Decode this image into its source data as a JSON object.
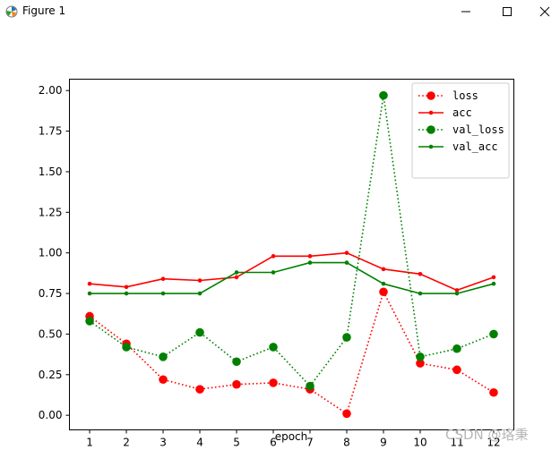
{
  "window": {
    "title": "Figure 1",
    "controls": [
      "minimize",
      "maximize",
      "close"
    ],
    "icon": "matplotlib-logo-icon"
  },
  "chart_data": {
    "type": "line",
    "xlabel": "epoch",
    "ylabel": "",
    "x": [
      1,
      2,
      3,
      4,
      5,
      6,
      7,
      8,
      9,
      10,
      11,
      12
    ],
    "xlim": [
      0.45,
      12.55
    ],
    "ylim": [
      -0.09,
      2.07
    ],
    "yticks": [
      0.0,
      0.25,
      0.5,
      0.75,
      1.0,
      1.25,
      1.5,
      1.75,
      2.0
    ],
    "ytick_labels": [
      "0.00",
      "0.25",
      "0.50",
      "0.75",
      "1.00",
      "1.25",
      "1.50",
      "1.75",
      "2.00"
    ],
    "xtick_labels": [
      "1",
      "2",
      "3",
      "4",
      "5",
      "6",
      "7",
      "8",
      "9",
      "10",
      "11",
      "12"
    ],
    "grid": false,
    "legend_position": "top-right",
    "series": [
      {
        "name": "loss",
        "color": "#ff0000",
        "style": "dotted",
        "marker": "large",
        "values": [
          0.61,
          0.44,
          0.22,
          0.16,
          0.19,
          0.2,
          0.16,
          0.01,
          0.76,
          0.32,
          0.28,
          0.14
        ]
      },
      {
        "name": "acc",
        "color": "#ff0000",
        "style": "solid",
        "marker": "small",
        "values": [
          0.81,
          0.79,
          0.84,
          0.83,
          0.85,
          0.98,
          0.98,
          1.0,
          0.9,
          0.87,
          0.77,
          0.85
        ]
      },
      {
        "name": "val_loss",
        "color": "#008000",
        "style": "dotted",
        "marker": "large",
        "values": [
          0.58,
          0.42,
          0.36,
          0.51,
          0.33,
          0.42,
          0.18,
          0.48,
          1.97,
          0.36,
          0.41,
          0.5
        ]
      },
      {
        "name": "val_acc",
        "color": "#008000",
        "style": "solid",
        "marker": "small",
        "values": [
          0.75,
          0.75,
          0.75,
          0.75,
          0.88,
          0.88,
          0.94,
          0.94,
          0.81,
          0.75,
          0.75,
          0.81
        ]
      }
    ]
  },
  "watermark": "CSDN @珞秉"
}
